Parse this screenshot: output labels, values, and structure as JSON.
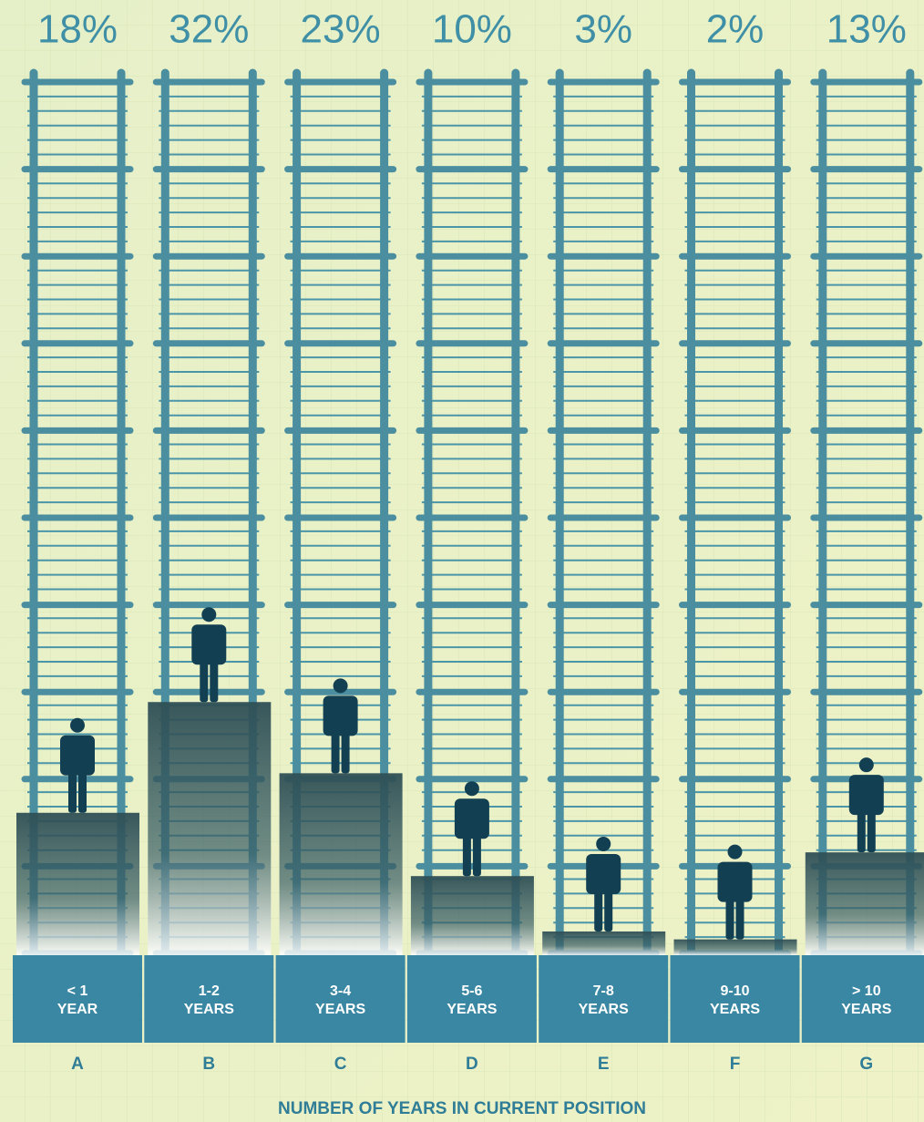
{
  "chart_data": {
    "type": "bar",
    "categories": [
      "< 1\nYEAR",
      "1-2\nYEARS",
      "3-4\nYEARS",
      "5-6\nYEARS",
      "7-8\nYEARS",
      "9-10\nYEARS",
      "> 10\nYEARS"
    ],
    "category_codes": [
      "A",
      "B",
      "C",
      "D",
      "E",
      "F",
      "G"
    ],
    "values": [
      18,
      32,
      23,
      10,
      3,
      2,
      13
    ],
    "value_labels": [
      "18%",
      "32%",
      "23%",
      "10%",
      "3%",
      "2%",
      "13%"
    ],
    "xlabel": "NUMBER OF YEARS IN CURRENT POSITION",
    "color": "#2f4f55"
  }
}
